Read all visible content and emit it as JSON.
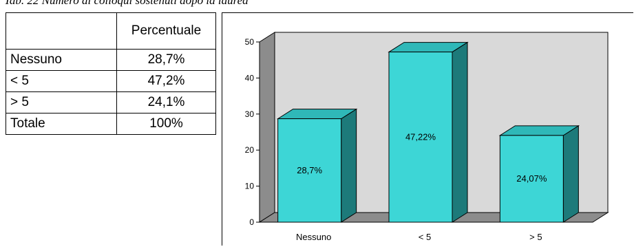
{
  "caption": "Tab. 22 Numero di colloqui sostenuti dopo la laurea",
  "table": {
    "header": [
      "",
      "Percentuale"
    ],
    "rows": [
      {
        "label": "Nessuno",
        "value": "28,7%"
      },
      {
        "label": "< 5",
        "value": "47,2%"
      },
      {
        "label": "> 5",
        "value": "24,1%"
      },
      {
        "label": "Totale",
        "value": "100%"
      }
    ]
  },
  "chart_data": {
    "type": "bar",
    "categories": [
      "Nessuno",
      "< 5",
      "> 5"
    ],
    "values": [
      28.7,
      47.22,
      24.07
    ],
    "data_labels": [
      "28,7%",
      "47,22%",
      "24,07%"
    ],
    "ylim": [
      0,
      50
    ],
    "yticks": [
      0,
      10,
      20,
      30,
      40,
      50
    ],
    "grid": false,
    "colors": {
      "bar_front": "#3dd6d6",
      "bar_side": "#1d7a7a",
      "bar_top": "#2fb8b8",
      "wall": "#d9d9d9",
      "wall_side": "#8c8c8c",
      "floor": "#8c8c8c"
    }
  }
}
